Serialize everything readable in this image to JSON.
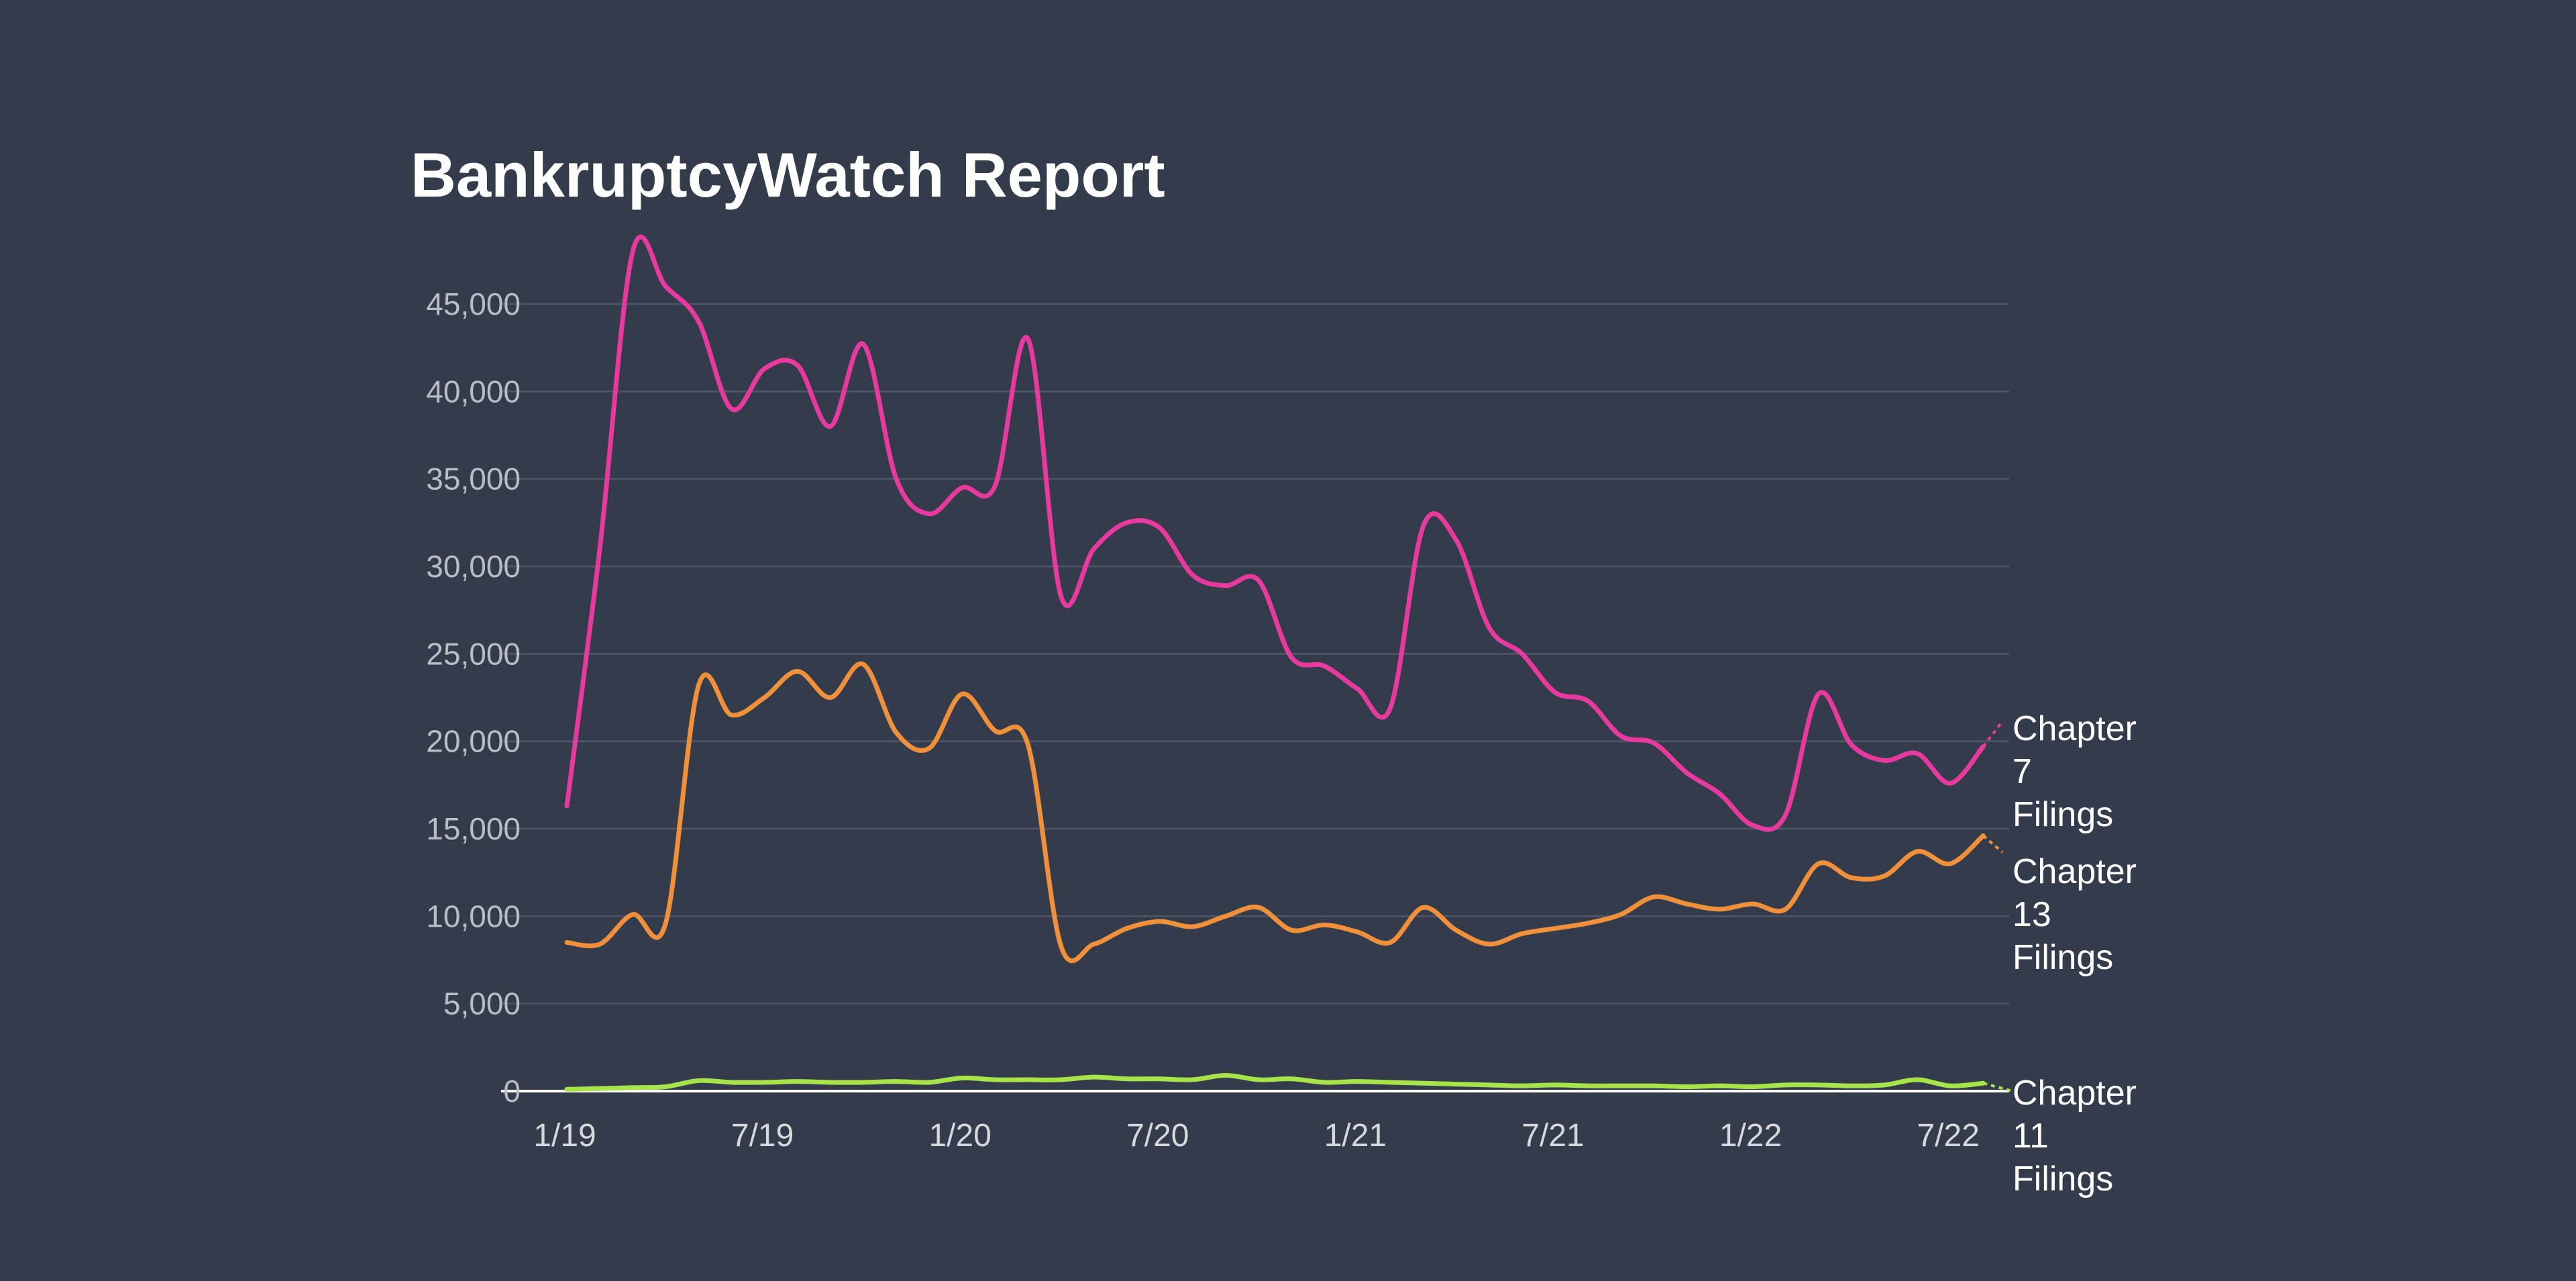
{
  "chart_data": {
    "type": "line",
    "title": "BankruptcyWatch Report",
    "xlabel": "",
    "ylabel": "",
    "ylim": [
      0,
      48500
    ],
    "yticks": [
      "0",
      "5,000",
      "10,000",
      "15,000",
      "20,000",
      "25,000",
      "30,000",
      "35,000",
      "40,000",
      "45,000"
    ],
    "ytick_values": [
      0,
      5000,
      10000,
      15000,
      20000,
      25000,
      30000,
      35000,
      40000,
      45000
    ],
    "xticks": [
      "1/19",
      "7/19",
      "1/20",
      "7/20",
      "1/21",
      "7/21",
      "1/22",
      "7/22"
    ],
    "x": [
      "1/19",
      "2/19",
      "3/19",
      "4/19",
      "5/19",
      "6/19",
      "7/19",
      "8/19",
      "9/19",
      "10/19",
      "11/19",
      "12/19",
      "1/20",
      "2/20",
      "3/20",
      "4/20",
      "5/20",
      "6/20",
      "7/20",
      "8/20",
      "9/20",
      "10/20",
      "11/20",
      "12/20",
      "1/21",
      "2/21",
      "3/21",
      "4/21",
      "5/21",
      "6/21",
      "7/21",
      "8/21",
      "9/21",
      "10/21",
      "11/21",
      "12/21",
      "1/22",
      "2/22",
      "3/22",
      "4/22",
      "5/22",
      "6/22",
      "7/22",
      "8/22"
    ],
    "grid": true,
    "legend": "end-of-line labels, right",
    "series": [
      {
        "name": "Chapter 7 Filings",
        "color": "#e8399f",
        "values": [
          16300,
          31000,
          48000,
          46000,
          44000,
          39000,
          41300,
          41500,
          38000,
          42700,
          35000,
          33000,
          34500,
          34600,
          43000,
          28300,
          31000,
          32500,
          32200,
          29500,
          28900,
          29200,
          24800,
          24300,
          23000,
          21900,
          32300,
          31500,
          26500,
          25000,
          22800,
          22300,
          20300,
          19900,
          18200,
          17000,
          15200,
          15800,
          22700,
          19800,
          18900,
          19300,
          17600,
          19700
        ]
      },
      {
        "name": "Chapter 13 Filings",
        "color": "#f0903a",
        "values": [
          8500,
          8400,
          10100,
          9600,
          23200,
          21500,
          22500,
          24000,
          22500,
          24400,
          20500,
          19600,
          22700,
          20600,
          19800,
          8300,
          8400,
          9300,
          9700,
          9400,
          10000,
          10500,
          9200,
          9500,
          9100,
          8500,
          10500,
          9200,
          8400,
          9000,
          9300,
          9600,
          10100,
          11100,
          10700,
          10400,
          10700,
          10400,
          13000,
          12200,
          12300,
          13700,
          13000,
          14600
        ]
      },
      {
        "name": "Chapter 11 Filings",
        "color": "#a6e44a",
        "values": [
          100,
          150,
          200,
          250,
          600,
          500,
          500,
          550,
          500,
          500,
          550,
          500,
          750,
          650,
          650,
          650,
          800,
          700,
          700,
          650,
          900,
          650,
          700,
          500,
          550,
          500,
          450,
          400,
          350,
          300,
          350,
          300,
          300,
          300,
          250,
          300,
          250,
          350,
          350,
          300,
          350,
          650,
          300,
          450
        ]
      }
    ]
  }
}
